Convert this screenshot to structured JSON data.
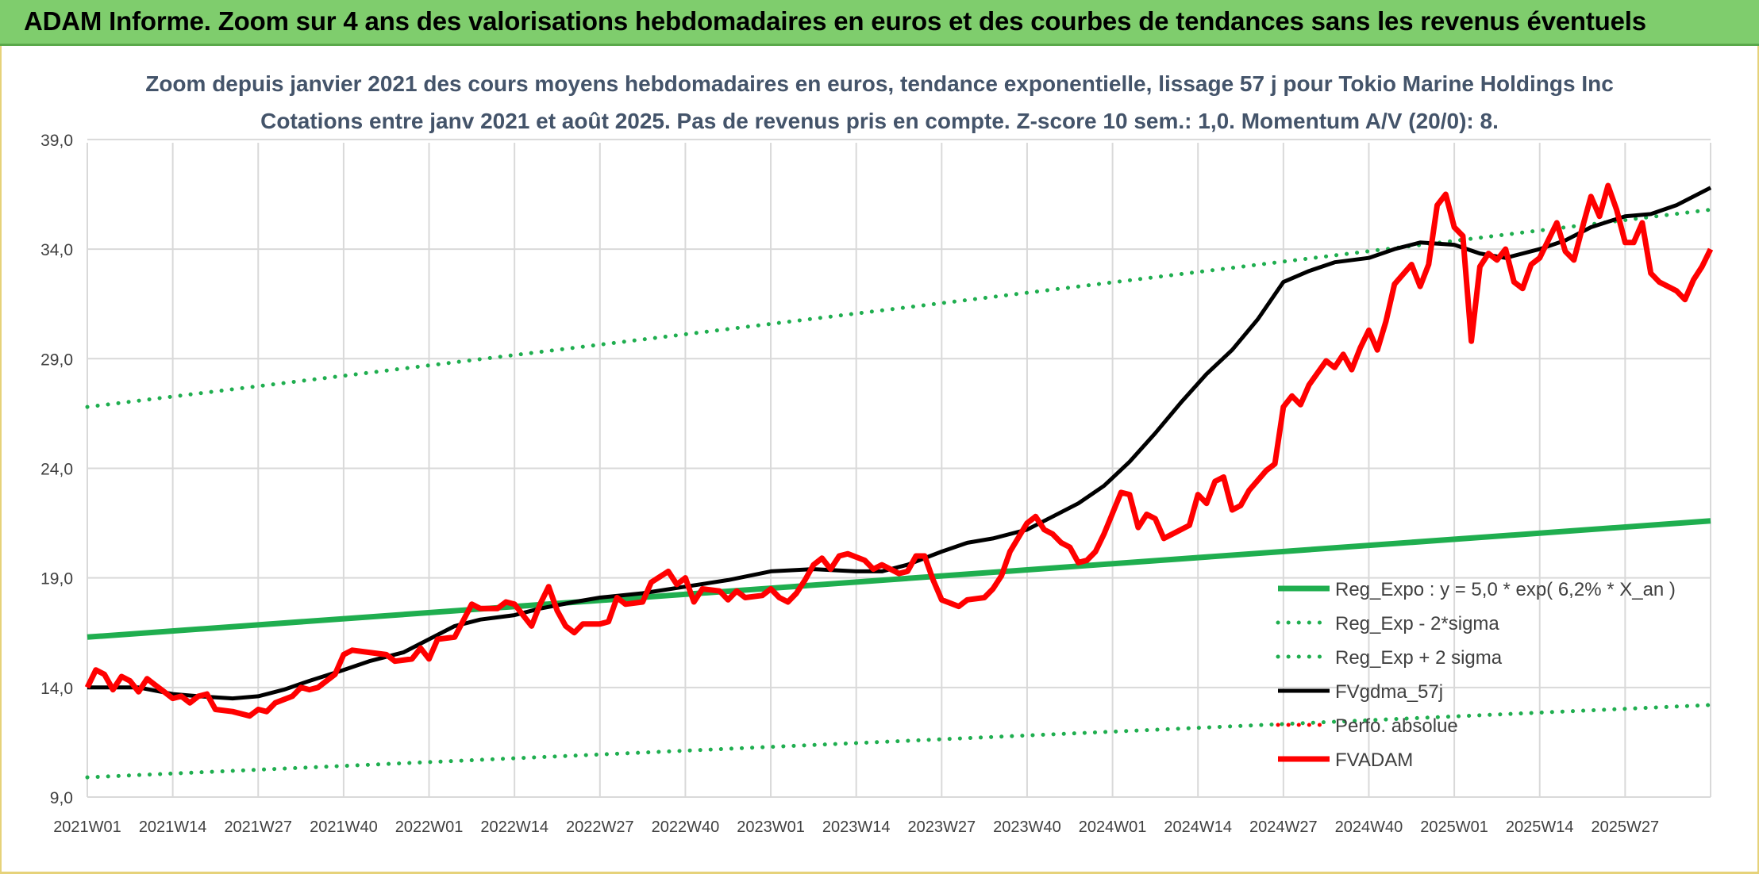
{
  "banner": {
    "title": "ADAM Informe. Zoom sur 4 ans des valorisations hebdomadaires en euros et des courbes de tendances sans les revenus éventuels"
  },
  "colors": {
    "banner_bg": "#7fcd6d",
    "regression": "#1fae4f",
    "fvgdma": "#000000",
    "fvadam": "#ff0000",
    "title_text": "#44546a"
  },
  "chart_data": {
    "type": "line",
    "title": "Zoom depuis janvier 2021 des cours moyens hebdomadaires en euros, tendance exponentielle, lissage 57 j pour Tokio Marine Holdings Inc",
    "subtitle": "Cotations entre janv 2021 et août 2025. Pas de revenus pris en compte. Z-score 10 sem.: 1,0. Momentum A/V (20/0): 8.",
    "ylim": [
      9,
      40
    ],
    "yticks": [
      "9,0",
      "14,0",
      "19,0",
      "24,0",
      "29,0",
      "34,0",
      "39,0"
    ],
    "ytick_values": [
      9,
      14,
      19,
      24,
      29,
      34,
      39
    ],
    "xlabels": [
      "2021W01",
      "2021W14",
      "2021W27",
      "2021W40",
      "2022W01",
      "2022W14",
      "2022W27",
      "2022W40",
      "2023W01",
      "2023W14",
      "2023W27",
      "2023W40",
      "2024W01",
      "2024W14",
      "2024W27",
      "2024W40",
      "2025W01",
      "2025W14",
      "2025W27"
    ],
    "grid": true,
    "legend_position": "bottom-right",
    "series": [
      {
        "name": "Reg_Expo : y = 5,0 * exp( 6,2% *  X_an )",
        "style": "solid-thick",
        "color": "#1fae4f",
        "points": [
          [
            0,
            16.3
          ],
          [
            19,
            21.6
          ]
        ]
      },
      {
        "name": "Reg_Exp - 2*sigma",
        "style": "dotted",
        "color": "#1fae4f",
        "points": [
          [
            0,
            9.9
          ],
          [
            19,
            13.2
          ]
        ]
      },
      {
        "name": "Reg_Exp + 2 sigma",
        "style": "dotted",
        "color": "#1fae4f",
        "points": [
          [
            0,
            26.8
          ],
          [
            19,
            35.8
          ]
        ]
      },
      {
        "name": "FVgdma_57j",
        "style": "solid",
        "color": "#000000",
        "points": [
          [
            0,
            14.0
          ],
          [
            0.3,
            14.0
          ],
          [
            0.6,
            14.0
          ],
          [
            1.0,
            13.7
          ],
          [
            1.3,
            13.6
          ],
          [
            1.7,
            13.5
          ],
          [
            2.0,
            13.6
          ],
          [
            2.3,
            13.9
          ],
          [
            2.6,
            14.3
          ],
          [
            3.0,
            14.8
          ],
          [
            3.3,
            15.2
          ],
          [
            3.7,
            15.6
          ],
          [
            4.0,
            16.2
          ],
          [
            4.3,
            16.8
          ],
          [
            4.6,
            17.1
          ],
          [
            5.0,
            17.3
          ],
          [
            5.3,
            17.6
          ],
          [
            5.7,
            17.9
          ],
          [
            6.0,
            18.1
          ],
          [
            6.5,
            18.3
          ],
          [
            7.0,
            18.6
          ],
          [
            7.5,
            18.9
          ],
          [
            8.0,
            19.3
          ],
          [
            8.5,
            19.4
          ],
          [
            9.0,
            19.3
          ],
          [
            9.3,
            19.3
          ],
          [
            9.6,
            19.6
          ],
          [
            10.0,
            20.2
          ],
          [
            10.3,
            20.6
          ],
          [
            10.6,
            20.8
          ],
          [
            11.0,
            21.2
          ],
          [
            11.3,
            21.8
          ],
          [
            11.6,
            22.4
          ],
          [
            11.9,
            23.2
          ],
          [
            12.2,
            24.3
          ],
          [
            12.5,
            25.6
          ],
          [
            12.8,
            27.0
          ],
          [
            13.1,
            28.3
          ],
          [
            13.4,
            29.4
          ],
          [
            13.7,
            30.8
          ],
          [
            14.0,
            32.5
          ],
          [
            14.3,
            33.0
          ],
          [
            14.6,
            33.4
          ],
          [
            15.0,
            33.6
          ],
          [
            15.3,
            34.0
          ],
          [
            15.6,
            34.3
          ],
          [
            16.0,
            34.2
          ],
          [
            16.3,
            33.8
          ],
          [
            16.6,
            33.6
          ],
          [
            17.0,
            34.0
          ],
          [
            17.3,
            34.4
          ],
          [
            17.6,
            35.0
          ],
          [
            18.0,
            35.5
          ],
          [
            18.3,
            35.6
          ],
          [
            18.6,
            36.0
          ],
          [
            19.0,
            36.8
          ]
        ]
      },
      {
        "name": "Perfo. absolue",
        "style": "dotted",
        "color": "#ff0000",
        "points": []
      },
      {
        "name": "FVADAM",
        "style": "solid-thick",
        "color": "#ff0000",
        "points": [
          [
            0,
            14.0
          ],
          [
            0.1,
            14.8
          ],
          [
            0.2,
            14.6
          ],
          [
            0.3,
            13.9
          ],
          [
            0.4,
            14.5
          ],
          [
            0.5,
            14.3
          ],
          [
            0.6,
            13.8
          ],
          [
            0.7,
            14.4
          ],
          [
            0.8,
            14.1
          ],
          [
            0.9,
            13.8
          ],
          [
            1.0,
            13.5
          ],
          [
            1.1,
            13.6
          ],
          [
            1.2,
            13.3
          ],
          [
            1.3,
            13.6
          ],
          [
            1.4,
            13.7
          ],
          [
            1.5,
            13.0
          ],
          [
            1.7,
            12.9
          ],
          [
            1.9,
            12.7
          ],
          [
            2.0,
            13.0
          ],
          [
            2.1,
            12.9
          ],
          [
            2.2,
            13.3
          ],
          [
            2.4,
            13.6
          ],
          [
            2.5,
            14.0
          ],
          [
            2.6,
            13.9
          ],
          [
            2.7,
            14.0
          ],
          [
            2.9,
            14.6
          ],
          [
            3.0,
            15.5
          ],
          [
            3.1,
            15.7
          ],
          [
            3.3,
            15.6
          ],
          [
            3.5,
            15.5
          ],
          [
            3.6,
            15.2
          ],
          [
            3.8,
            15.3
          ],
          [
            3.9,
            15.8
          ],
          [
            4.0,
            15.3
          ],
          [
            4.1,
            16.2
          ],
          [
            4.3,
            16.3
          ],
          [
            4.5,
            17.8
          ],
          [
            4.6,
            17.6
          ],
          [
            4.8,
            17.6
          ],
          [
            4.9,
            17.9
          ],
          [
            5.0,
            17.8
          ],
          [
            5.1,
            17.3
          ],
          [
            5.2,
            16.8
          ],
          [
            5.3,
            17.8
          ],
          [
            5.4,
            18.6
          ],
          [
            5.5,
            17.5
          ],
          [
            5.6,
            16.8
          ],
          [
            5.7,
            16.5
          ],
          [
            5.8,
            16.9
          ],
          [
            6.0,
            16.9
          ],
          [
            6.1,
            17.0
          ],
          [
            6.2,
            18.1
          ],
          [
            6.3,
            17.8
          ],
          [
            6.5,
            17.9
          ],
          [
            6.6,
            18.8
          ],
          [
            6.8,
            19.3
          ],
          [
            6.9,
            18.7
          ],
          [
            7.0,
            19.0
          ],
          [
            7.1,
            17.9
          ],
          [
            7.2,
            18.5
          ],
          [
            7.4,
            18.4
          ],
          [
            7.5,
            18.0
          ],
          [
            7.6,
            18.4
          ],
          [
            7.7,
            18.1
          ],
          [
            7.9,
            18.2
          ],
          [
            8.0,
            18.5
          ],
          [
            8.1,
            18.1
          ],
          [
            8.2,
            17.9
          ],
          [
            8.3,
            18.3
          ],
          [
            8.4,
            18.9
          ],
          [
            8.5,
            19.6
          ],
          [
            8.6,
            19.9
          ],
          [
            8.7,
            19.4
          ],
          [
            8.8,
            20.0
          ],
          [
            8.9,
            20.1
          ],
          [
            9.1,
            19.8
          ],
          [
            9.2,
            19.4
          ],
          [
            9.3,
            19.6
          ],
          [
            9.5,
            19.2
          ],
          [
            9.6,
            19.3
          ],
          [
            9.7,
            20.0
          ],
          [
            9.8,
            20.0
          ],
          [
            9.9,
            18.9
          ],
          [
            10.0,
            18.0
          ],
          [
            10.2,
            17.7
          ],
          [
            10.3,
            18.0
          ],
          [
            10.5,
            18.1
          ],
          [
            10.6,
            18.5
          ],
          [
            10.7,
            19.1
          ],
          [
            10.8,
            20.2
          ],
          [
            11.0,
            21.5
          ],
          [
            11.1,
            21.8
          ],
          [
            11.2,
            21.2
          ],
          [
            11.3,
            21.0
          ],
          [
            11.4,
            20.6
          ],
          [
            11.5,
            20.4
          ],
          [
            11.6,
            19.7
          ],
          [
            11.7,
            19.8
          ],
          [
            11.8,
            20.2
          ],
          [
            11.9,
            21.0
          ],
          [
            12.1,
            22.9
          ],
          [
            12.2,
            22.8
          ],
          [
            12.3,
            21.3
          ],
          [
            12.4,
            21.9
          ],
          [
            12.5,
            21.7
          ],
          [
            12.6,
            20.8
          ],
          [
            12.7,
            21.0
          ],
          [
            12.9,
            21.4
          ],
          [
            13.0,
            22.8
          ],
          [
            13.1,
            22.4
          ],
          [
            13.2,
            23.4
          ],
          [
            13.3,
            23.6
          ],
          [
            13.4,
            22.1
          ],
          [
            13.5,
            22.3
          ],
          [
            13.6,
            23.0
          ],
          [
            13.8,
            23.9
          ],
          [
            13.9,
            24.2
          ],
          [
            14.0,
            26.8
          ],
          [
            14.1,
            27.3
          ],
          [
            14.2,
            26.9
          ],
          [
            14.3,
            27.8
          ],
          [
            14.5,
            28.9
          ],
          [
            14.6,
            28.6
          ],
          [
            14.7,
            29.2
          ],
          [
            14.8,
            28.5
          ],
          [
            14.9,
            29.5
          ],
          [
            15.0,
            30.3
          ],
          [
            15.1,
            29.4
          ],
          [
            15.2,
            30.7
          ],
          [
            15.3,
            32.4
          ],
          [
            15.5,
            33.3
          ],
          [
            15.6,
            32.3
          ],
          [
            15.7,
            33.3
          ],
          [
            15.8,
            36.0
          ],
          [
            15.9,
            36.5
          ],
          [
            16.0,
            35.0
          ],
          [
            16.1,
            34.6
          ],
          [
            16.2,
            29.8
          ],
          [
            16.3,
            33.2
          ],
          [
            16.4,
            33.8
          ],
          [
            16.5,
            33.5
          ],
          [
            16.6,
            34.0
          ],
          [
            16.7,
            32.5
          ],
          [
            16.8,
            32.2
          ],
          [
            16.9,
            33.3
          ],
          [
            17.0,
            33.6
          ],
          [
            17.2,
            35.2
          ],
          [
            17.3,
            33.9
          ],
          [
            17.4,
            33.5
          ],
          [
            17.5,
            35.0
          ],
          [
            17.6,
            36.4
          ],
          [
            17.7,
            35.5
          ],
          [
            17.8,
            36.9
          ],
          [
            17.9,
            35.8
          ],
          [
            18.0,
            34.3
          ],
          [
            18.1,
            34.3
          ],
          [
            18.2,
            35.2
          ],
          [
            18.3,
            32.9
          ],
          [
            18.4,
            32.5
          ],
          [
            18.5,
            32.3
          ],
          [
            18.6,
            32.1
          ],
          [
            18.7,
            31.7
          ],
          [
            18.8,
            32.6
          ],
          [
            18.9,
            33.2
          ],
          [
            19.0,
            34.0
          ]
        ]
      }
    ]
  }
}
